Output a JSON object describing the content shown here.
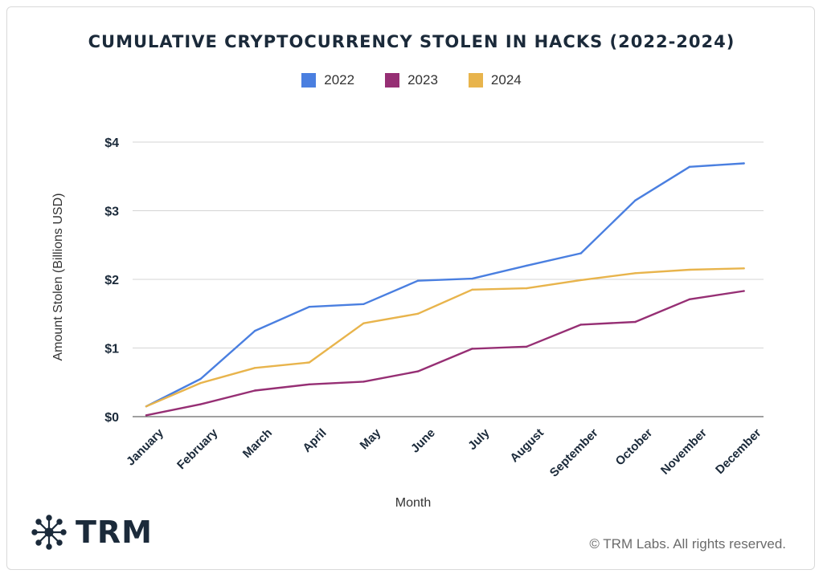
{
  "chart_data": {
    "type": "line",
    "title": "CUMULATIVE CRYPTOCURRENCY STOLEN IN HACKS (2022-2024)",
    "xlabel": "Month",
    "ylabel": "Amount Stolen (Billions USD)",
    "categories": [
      "January",
      "February",
      "March",
      "April",
      "May",
      "June",
      "July",
      "August",
      "September",
      "October",
      "November",
      "December"
    ],
    "ylim": [
      0,
      4
    ],
    "yticks": [
      0,
      1,
      2,
      3,
      4
    ],
    "ytick_labels": [
      "$0",
      "$1",
      "$2",
      "$3",
      "$4"
    ],
    "grid": true,
    "legend_position": "top-center",
    "series": [
      {
        "name": "2022",
        "color": "#4a7fe0",
        "values": [
          0.15,
          0.55,
          1.25,
          1.6,
          1.64,
          1.98,
          2.01,
          2.2,
          2.38,
          3.15,
          3.64,
          3.69
        ]
      },
      {
        "name": "2023",
        "color": "#962f74",
        "values": [
          0.02,
          0.18,
          0.38,
          0.47,
          0.51,
          0.66,
          0.99,
          1.02,
          1.34,
          1.38,
          1.71,
          1.83
        ]
      },
      {
        "name": "2024",
        "color": "#e8b44c",
        "values": [
          0.15,
          0.49,
          0.71,
          0.79,
          1.36,
          1.5,
          1.85,
          1.87,
          1.99,
          2.09,
          2.14,
          2.16
        ]
      }
    ]
  },
  "footer": {
    "logo_text": "TRM",
    "copyright": "© TRM Labs. All rights reserved."
  },
  "icons": {
    "logo": "network-node-icon"
  }
}
